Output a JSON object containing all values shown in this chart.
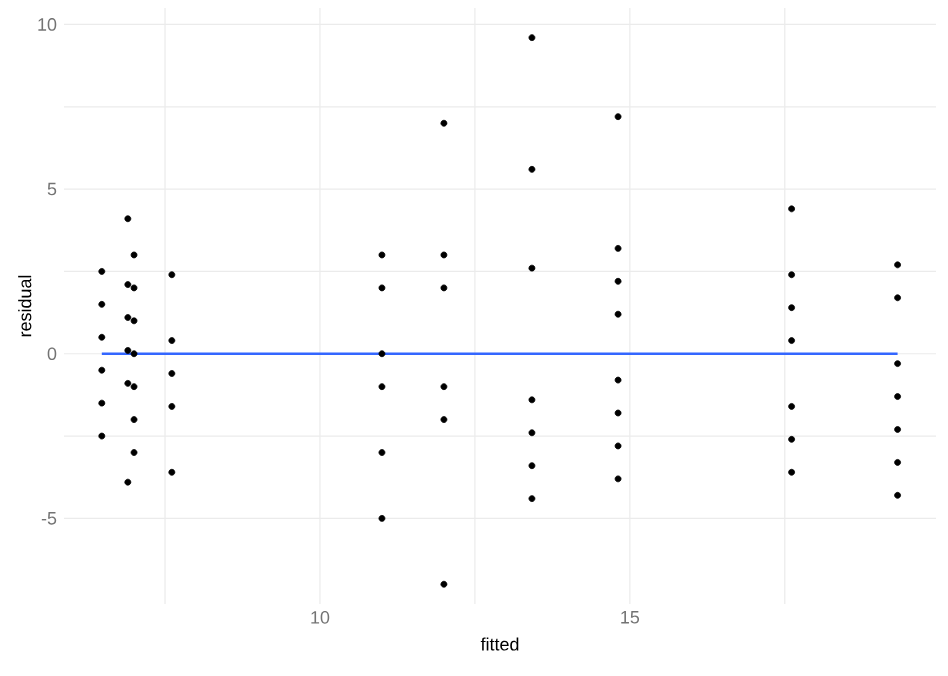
{
  "chart_data": {
    "type": "scatter",
    "xlabel": "fitted",
    "ylabel": "residual",
    "xlim": [
      5.87,
      19.94
    ],
    "ylim": [
      -7.6,
      10.5
    ],
    "xticks": [
      {
        "value": 7.5,
        "label": null
      },
      10,
      {
        "value": 12.5,
        "label": null
      },
      15,
      {
        "value": 17.5,
        "label": null
      }
    ],
    "yticks": [
      -5,
      {
        "value": -2.5,
        "label": null
      },
      0,
      {
        "value": 2.5,
        "label": null
      },
      5,
      {
        "value": 7.5,
        "label": null
      },
      10
    ],
    "grid": true,
    "marker": "circle",
    "series": [
      {
        "color": "#000000",
        "x": [
          6.48,
          6.48,
          6.48,
          6.48,
          6.48,
          6.48,
          6.9,
          6.9,
          6.9,
          6.9,
          6.9,
          6.9,
          7.0,
          7.0,
          7.0,
          7.0,
          7.0,
          7.0,
          7.0,
          7.61,
          7.61,
          7.61,
          7.61,
          7.61,
          11.0,
          11.0,
          11.0,
          11.0,
          11.0,
          11.0,
          12.0,
          12.0,
          12.0,
          12.0,
          12.0,
          12.0,
          13.42,
          13.42,
          13.42,
          13.42,
          13.42,
          13.42,
          13.42,
          14.81,
          14.81,
          14.81,
          14.81,
          14.81,
          14.81,
          14.81,
          14.81,
          17.61,
          17.61,
          17.61,
          17.61,
          17.61,
          17.61,
          17.61,
          19.32,
          19.32,
          19.32,
          19.32,
          19.32,
          19.32,
          19.32
        ],
        "values": [
          2.5,
          1.5,
          0.5,
          -0.5,
          -1.5,
          -2.5,
          4.1,
          2.1,
          1.1,
          0.1,
          -0.9,
          -3.9,
          3.0,
          2.0,
          1.0,
          0.0,
          -1.0,
          -2.0,
          -3.0,
          2.4,
          0.4,
          -0.6,
          -1.6,
          -3.6,
          3.0,
          2.0,
          0.0,
          -1.0,
          -3.0,
          -5.0,
          7.0,
          3.0,
          2.0,
          -1.0,
          -2.0,
          -7.0,
          9.6,
          5.6,
          2.6,
          -1.4,
          -2.4,
          -3.4,
          -4.4,
          7.2,
          3.2,
          2.2,
          1.2,
          -0.8,
          -1.8,
          -2.8,
          -3.8,
          4.4,
          2.4,
          1.4,
          0.4,
          -1.6,
          -2.6,
          -3.6,
          2.7,
          1.7,
          -0.3,
          -1.3,
          -2.3,
          -3.3,
          -4.3
        ]
      },
      {
        "type": "line",
        "marker": "none",
        "color": "#3366ff",
        "x": [
          6.48,
          19.32
        ],
        "values": [
          0,
          0
        ]
      }
    ]
  }
}
